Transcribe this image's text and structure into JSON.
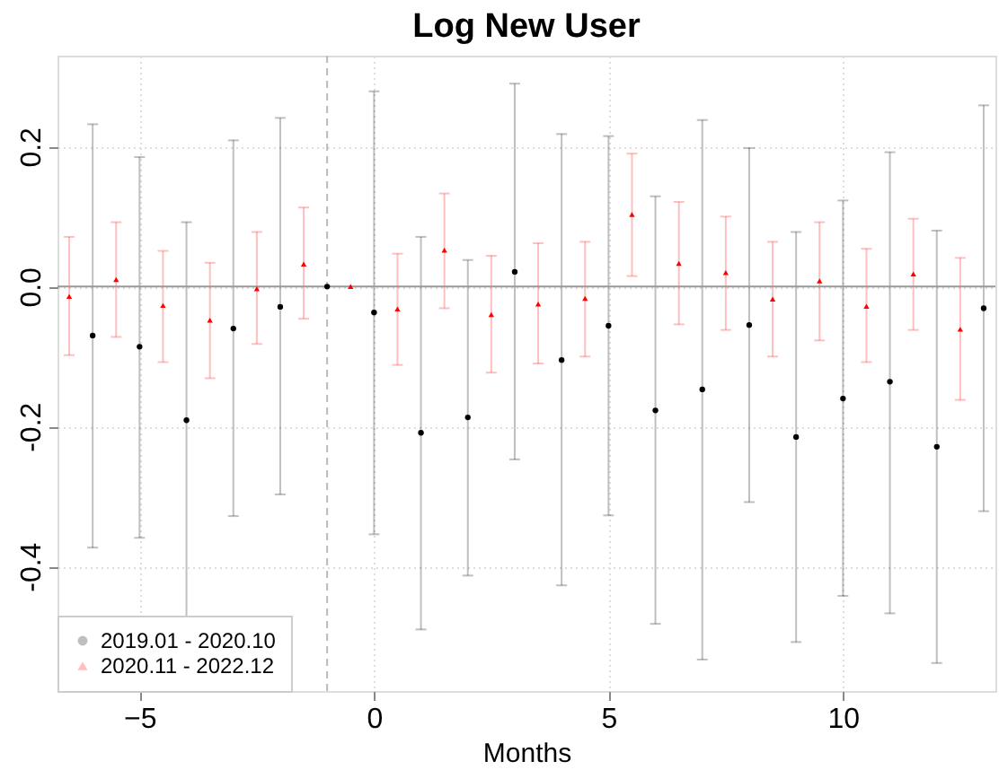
{
  "chart_data": {
    "type": "scatter",
    "title": "Log New User",
    "xlabel": "Months",
    "xlim": [
      -6.75,
      13.25
    ],
    "ylim": [
      -0.578,
      0.33
    ],
    "xticks": [
      -5,
      0,
      5,
      10
    ],
    "yticks": [
      {
        "value": -0.4,
        "label": "-0.4"
      },
      {
        "value": -0.2,
        "label": "-0.2"
      },
      {
        "value": 0,
        "label": "0.0"
      },
      {
        "value": 0.2,
        "label": "0.2"
      }
    ],
    "grid": true,
    "legend": "bottom left",
    "ref_lines": [
      {
        "axis": "y",
        "value": 0,
        "color": "#999999",
        "line_style": "solid"
      },
      {
        "axis": "x",
        "value": -1,
        "color": "#bbbbbb",
        "line_style": "dashed"
      }
    ],
    "series": [
      {
        "name": "2019.01 - 2020.10",
        "color": "#000000",
        "marker": "circle",
        "x": [
          -6,
          -5,
          -4,
          -3,
          -2,
          -1,
          0,
          1,
          2,
          3,
          4,
          5,
          6,
          7,
          8,
          9,
          10,
          11,
          12,
          13
        ],
        "values": [
          -0.07,
          -0.086,
          -0.191,
          -0.06,
          -0.029,
          0,
          -0.037,
          -0.209,
          -0.187,
          0.021,
          -0.105,
          -0.056,
          -0.177,
          -0.147,
          -0.055,
          -0.215,
          -0.16,
          -0.136,
          -0.229,
          -0.031
        ],
        "errors": [
          [
            -0.373,
            0.232
          ],
          [
            -0.359,
            0.185
          ],
          [
            -0.474,
            0.092
          ],
          [
            -0.328,
            0.209
          ],
          [
            -0.297,
            0.241
          ],
          null,
          [
            -0.354,
            0.279
          ],
          [
            -0.49,
            0.071
          ],
          [
            -0.413,
            0.038
          ],
          [
            -0.247,
            0.29
          ],
          [
            -0.427,
            0.218
          ],
          [
            -0.327,
            0.215
          ],
          [
            -0.482,
            0.129
          ],
          [
            -0.533,
            0.238
          ],
          [
            -0.308,
            0.198
          ],
          [
            -0.508,
            0.078
          ],
          [
            -0.442,
            0.123
          ],
          [
            -0.467,
            0.192
          ],
          [
            -0.538,
            0.08
          ],
          [
            -0.321,
            0.259
          ]
        ]
      },
      {
        "name": "2020.11 - 2022.12",
        "color": "#ff0000",
        "marker": "triangle",
        "x": [
          -6.5,
          -5.5,
          -4.5,
          -3.5,
          -2.5,
          -1.5,
          -0.5,
          0.5,
          1.5,
          2.5,
          3.5,
          4.5,
          5.5,
          6.5,
          7.5,
          8.5,
          9.5,
          10.5,
          11.5,
          12.5
        ],
        "values": [
          -0.014,
          0.01,
          -0.027,
          -0.048,
          -0.003,
          0.032,
          0,
          -0.032,
          0.052,
          -0.04,
          -0.025,
          -0.017,
          0.103,
          0.033,
          0.02,
          -0.018,
          0.008,
          -0.028,
          0.018,
          -0.061
        ],
        "errors": [
          [
            -0.098,
            0.071
          ],
          [
            -0.072,
            0.092
          ],
          [
            -0.108,
            0.051
          ],
          [
            -0.131,
            0.034
          ],
          [
            -0.082,
            0.078
          ],
          [
            -0.046,
            0.113
          ],
          null,
          [
            -0.112,
            0.047
          ],
          [
            -0.031,
            0.133
          ],
          [
            -0.123,
            0.044
          ],
          [
            -0.11,
            0.062
          ],
          [
            -0.1,
            0.064
          ],
          [
            0.015,
            0.19
          ],
          [
            -0.054,
            0.121
          ],
          [
            -0.062,
            0.1
          ],
          [
            -0.1,
            0.064
          ],
          [
            -0.077,
            0.092
          ],
          [
            -0.108,
            0.054
          ],
          [
            -0.062,
            0.097
          ],
          [
            -0.162,
            0.041
          ]
        ]
      }
    ]
  }
}
